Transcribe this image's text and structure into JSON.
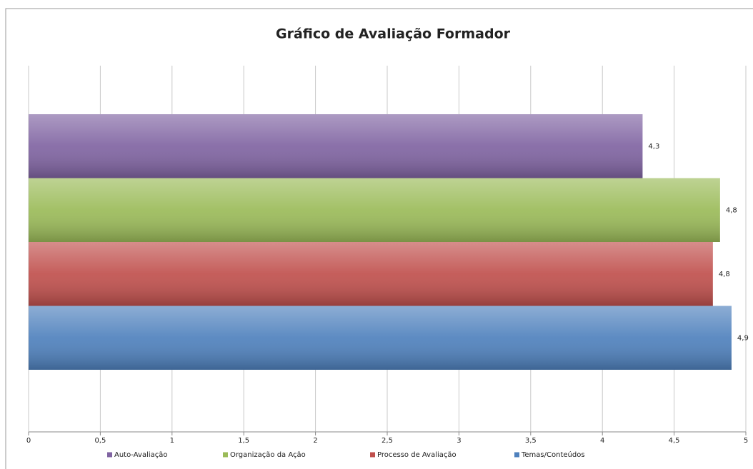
{
  "chart_data": {
    "type": "bar",
    "orientation": "horizontal",
    "title": "Gráfico de Avaliação Formador",
    "series": [
      {
        "name": "Auto-Avaliação",
        "color": "#8064a2",
        "values": [
          4.28
        ],
        "value_labels": [
          "4,3"
        ]
      },
      {
        "name": "Organização da Ação",
        "color": "#9bbb59",
        "values": [
          4.82
        ],
        "value_labels": [
          "4,8"
        ]
      },
      {
        "name": "Processo de Avaliação",
        "color": "#c0504d",
        "values": [
          4.77
        ],
        "value_labels": [
          "4,8"
        ]
      },
      {
        "name": "Temas/Conteúdos",
        "color": "#4f81bd",
        "values": [
          4.9
        ],
        "value_labels": [
          "4,9"
        ]
      }
    ],
    "xlim": [
      0,
      5
    ],
    "xticks": [
      0,
      {
        "value": 0.5,
        "label": "0,5"
      },
      1,
      {
        "value": 1.5,
        "label": "1,5"
      },
      2,
      {
        "value": 2.5,
        "label": "2,5"
      },
      3,
      {
        "value": 3.5,
        "label": "3,5"
      },
      4,
      {
        "value": 4.5,
        "label": "4,5"
      },
      5
    ],
    "grid": true,
    "legend": "bottom"
  }
}
